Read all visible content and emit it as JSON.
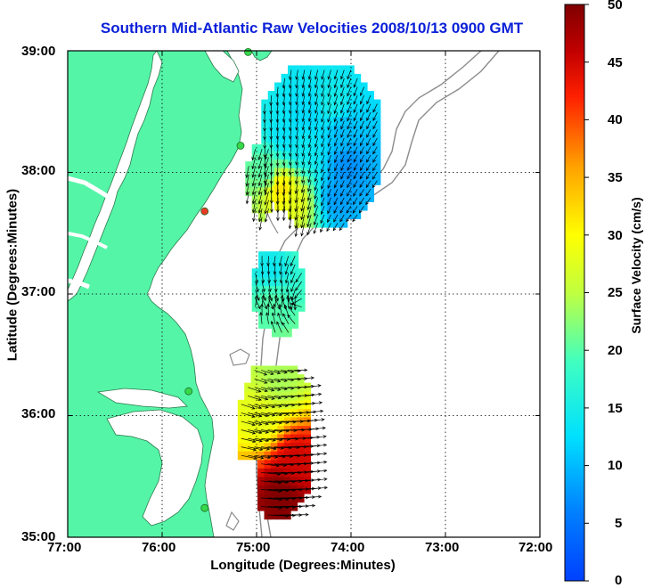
{
  "title": "Southern Mid-Atlantic Raw Velocities 2008/10/13 0900 GMT",
  "axes": {
    "xlabel": "Longitude (Degrees:Minutes)",
    "ylabel": "Latitude (Degrees:Minutes)",
    "xticks": [
      "77:00",
      "76:00",
      "75:00",
      "74:00",
      "73:00",
      "72:00"
    ],
    "yticks": [
      "39:00",
      "38:00",
      "37:00",
      "36:00",
      "35:00"
    ],
    "grid": "dotted"
  },
  "colorbar": {
    "label": "Surface Velocity (cm/s)",
    "ticks": [
      "50",
      "45",
      "40",
      "35",
      "30",
      "25",
      "20",
      "15",
      "10",
      "5",
      "0"
    ],
    "min": 0,
    "max": 50
  },
  "colors": {
    "land": "#55f5a8",
    "title": "#0a1fd8",
    "bathymetry": "#8c8c8c",
    "station_active": "#36d94a",
    "station_inactive": "#e83a25"
  },
  "chart_data": {
    "type": "map",
    "xlim": [
      -77,
      -72
    ],
    "ylim": [
      35,
      39
    ],
    "units": "cm/s",
    "regions": [
      {
        "lon": -74.45,
        "lat": 38.45,
        "speed": 12
      },
      {
        "lon": -74.2,
        "lat": 38.55,
        "speed": 15
      },
      {
        "lon": -74.7,
        "lat": 38.3,
        "speed": 13
      },
      {
        "lon": -74.5,
        "lat": 38.2,
        "speed": 14
      },
      {
        "lon": -74.9,
        "lat": 38.0,
        "speed": 20
      },
      {
        "lon": -74.75,
        "lat": 37.87,
        "speed": 32
      },
      {
        "lon": -74.6,
        "lat": 37.75,
        "speed": 28
      },
      {
        "lon": -74.15,
        "lat": 37.8,
        "speed": 8
      },
      {
        "lon": -74.05,
        "lat": 38.05,
        "speed": 7
      },
      {
        "lon": -74.1,
        "lat": 38.35,
        "speed": 10
      },
      {
        "lon": -74.85,
        "lat": 37.2,
        "speed": 14
      },
      {
        "lon": -74.85,
        "lat": 36.95,
        "speed": 20
      },
      {
        "lon": -74.95,
        "lat": 35.95,
        "speed": 28
      },
      {
        "lon": -74.75,
        "lat": 36.3,
        "speed": 24
      },
      {
        "lon": -74.6,
        "lat": 35.65,
        "speed": 45
      },
      {
        "lon": -74.75,
        "lat": 35.35,
        "speed": 50
      }
    ],
    "stations": [
      {
        "lon": -75.09,
        "lat": 38.99,
        "status": "active"
      },
      {
        "lon": -75.17,
        "lat": 38.22,
        "status": "active"
      },
      {
        "lon": -75.55,
        "lat": 37.68,
        "status": "inactive"
      },
      {
        "lon": -75.72,
        "lat": 36.2,
        "status": "active"
      },
      {
        "lon": -75.55,
        "lat": 35.24,
        "status": "active"
      }
    ]
  }
}
